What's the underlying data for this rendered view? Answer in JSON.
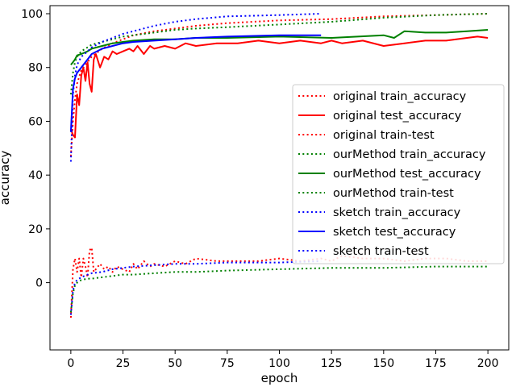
{
  "chart_data": {
    "type": "line",
    "title": "",
    "xlabel": "epoch",
    "ylabel": "accuracy",
    "xlim": [
      -10,
      210
    ],
    "ylim": [
      -25,
      103
    ],
    "xticks": [
      0,
      25,
      50,
      75,
      100,
      125,
      150,
      175,
      200
    ],
    "yticks": [
      0,
      20,
      40,
      60,
      80,
      100
    ],
    "grid": false,
    "legend_position": "center-right",
    "series": [
      {
        "name": "original train_accuracy",
        "color": "#ff0000",
        "style": "dotted",
        "x": [
          0,
          1,
          2,
          3,
          5,
          8,
          10,
          15,
          20,
          25,
          30,
          40,
          50,
          60,
          75,
          100,
          125,
          150,
          175,
          200
        ],
        "y": [
          47,
          60,
          68,
          74,
          79,
          82,
          84,
          87,
          89,
          90.5,
          92,
          93.5,
          94.5,
          95.5,
          96.5,
          97.5,
          98,
          99,
          99.5,
          100
        ]
      },
      {
        "name": "original test_accuracy",
        "color": "#ff0000",
        "style": "solid",
        "x": [
          0,
          1,
          2,
          3,
          4,
          5,
          6,
          7,
          8,
          9,
          10,
          11,
          12,
          14,
          16,
          18,
          20,
          22,
          25,
          28,
          30,
          32,
          35,
          38,
          40,
          45,
          50,
          55,
          60,
          70,
          80,
          90,
          100,
          110,
          120,
          125,
          130,
          140,
          150,
          160,
          170,
          180,
          190,
          195,
          200
        ],
        "y": [
          57,
          55,
          54,
          70,
          66,
          77,
          80,
          75,
          82,
          74,
          71,
          83,
          85,
          80,
          84,
          83,
          86,
          85,
          86,
          87,
          86,
          88,
          85,
          88,
          87,
          88,
          87,
          89,
          88,
          89,
          89,
          90,
          89,
          90,
          89,
          90,
          89,
          90,
          88,
          89,
          90,
          90,
          91,
          91.5,
          91
        ]
      },
      {
        "name": "original train-test",
        "color": "#ff0000",
        "style": "dotted",
        "x": [
          0,
          1,
          2,
          3,
          4,
          5,
          6,
          7,
          8,
          9,
          10,
          11,
          12,
          14,
          16,
          18,
          20,
          22,
          25,
          28,
          30,
          32,
          35,
          38,
          40,
          45,
          50,
          55,
          60,
          70,
          80,
          90,
          100,
          110,
          120,
          125,
          130,
          140,
          150,
          160,
          170,
          180,
          190,
          195,
          200
        ],
        "y": [
          -13,
          5,
          9,
          4,
          9,
          2,
          9,
          6,
          2,
          12,
          13,
          4,
          5,
          7,
          5,
          6,
          4,
          6,
          5,
          4,
          7,
          5,
          8,
          6,
          7,
          6,
          8,
          7,
          9,
          8,
          8,
          8,
          9,
          8,
          9,
          8,
          10,
          9,
          9,
          8,
          9,
          9,
          8,
          8,
          8
        ]
      },
      {
        "name": "ourMethod train_accuracy",
        "color": "#008000",
        "style": "dotted",
        "x": [
          0,
          1,
          2,
          3,
          5,
          8,
          10,
          15,
          20,
          25,
          30,
          40,
          50,
          60,
          75,
          100,
          125,
          150,
          175,
          200
        ],
        "y": [
          70,
          78,
          82,
          84,
          86,
          87.5,
          88.5,
          89.5,
          90.5,
          91.5,
          92,
          93,
          94,
          94.5,
          95,
          96,
          97,
          98.5,
          99.5,
          100
        ]
      },
      {
        "name": "ourMethod test_accuracy",
        "color": "#008000",
        "style": "solid",
        "x": [
          0,
          1,
          2,
          3,
          5,
          8,
          10,
          15,
          20,
          25,
          30,
          40,
          50,
          60,
          75,
          100,
          125,
          150,
          155,
          160,
          170,
          180,
          190,
          200
        ],
        "y": [
          81,
          82,
          83,
          84.5,
          85,
          86,
          87,
          88,
          89,
          89.5,
          90,
          90.5,
          90.5,
          91,
          91,
          91.5,
          91,
          92,
          91,
          93.5,
          93,
          93,
          93.5,
          94
        ]
      },
      {
        "name": "ourMethod train-test",
        "color": "#008000",
        "style": "dotted",
        "x": [
          0,
          1,
          2,
          3,
          5,
          8,
          10,
          15,
          20,
          25,
          30,
          40,
          50,
          60,
          75,
          100,
          125,
          150,
          175,
          200
        ],
        "y": [
          -11,
          -4,
          -1,
          0,
          1,
          1.5,
          1.5,
          2,
          2.5,
          3,
          3,
          3.5,
          4,
          4,
          4.5,
          5,
          5.5,
          5.5,
          6,
          6
        ]
      },
      {
        "name": "sketch train_accuracy",
        "color": "#0000ff",
        "style": "dotted",
        "x": [
          0,
          1,
          2,
          3,
          5,
          8,
          10,
          15,
          20,
          25,
          30,
          40,
          50,
          60,
          75,
          100,
          120
        ],
        "y": [
          45,
          70,
          77,
          81,
          84,
          86,
          87.5,
          89.5,
          91,
          92.5,
          93.5,
          95.5,
          97,
          98,
          99,
          99.5,
          100
        ]
      },
      {
        "name": "sketch test_accuracy",
        "color": "#0000ff",
        "style": "solid",
        "x": [
          0,
          1,
          2,
          3,
          5,
          8,
          10,
          15,
          20,
          25,
          30,
          40,
          50,
          60,
          75,
          100,
          120
        ],
        "y": [
          56,
          72,
          76,
          78,
          80,
          83,
          85,
          87,
          88,
          89,
          89.5,
          90,
          90.5,
          91,
          91.5,
          92,
          92
        ]
      },
      {
        "name": "sketch train-test",
        "color": "#0000ff",
        "style": "dotted",
        "x": [
          0,
          1,
          2,
          3,
          5,
          8,
          10,
          15,
          20,
          25,
          30,
          40,
          50,
          60,
          75,
          100,
          120
        ],
        "y": [
          -12,
          -3,
          0,
          1,
          2,
          3,
          3.5,
          4,
          5,
          5.5,
          6,
          6.5,
          7,
          7,
          7.5,
          7.5,
          8
        ]
      }
    ]
  }
}
